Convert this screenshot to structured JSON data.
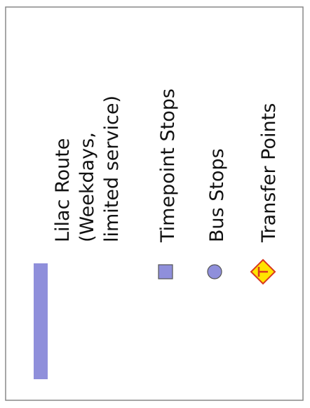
{
  "legend": {
    "items": [
      {
        "label_lines": [
          "Lilac Route",
          "(Weekdays,",
          "limited service)"
        ]
      },
      {
        "label": "Timepoint Stops"
      },
      {
        "label": "Bus Stops"
      },
      {
        "label": "Transfer Points"
      }
    ]
  }
}
